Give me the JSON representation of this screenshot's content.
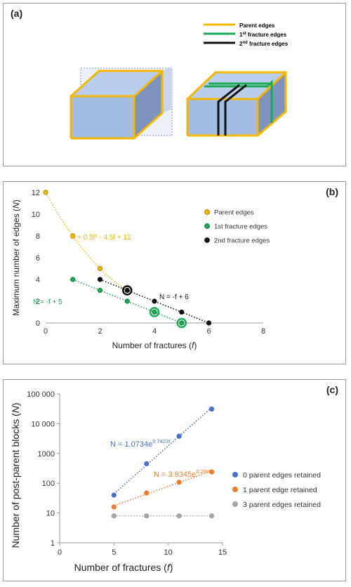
{
  "panel_a": {
    "label": "(a)",
    "legend": [
      {
        "name": "Parent edges",
        "color": "#f5b800"
      },
      {
        "name": "1",
        "sup": "st",
        "tail": " fracture edges",
        "color": "#1aaa55"
      },
      {
        "name": "2",
        "sup": "nd",
        "tail": " fracture edges",
        "color": "#111111"
      }
    ],
    "colors": {
      "face_front": "#a3bde3",
      "face_top": "#b9cdec",
      "face_side": "#7f93bf",
      "parent": "#f5b800",
      "first": "#1aaa55",
      "second": "#111111"
    }
  },
  "chart_data": [
    {
      "type": "scatter",
      "label": "(b)",
      "xlabel": "Number of fractures (",
      "xlabel_var": "f",
      "xlabel_end": ")",
      "ylabel": "Maximum number of edges (",
      "ylabel_var": "N",
      "ylabel_end": ")",
      "xlim": [
        0,
        8
      ],
      "ylim": [
        0,
        12
      ],
      "xticks": [
        0,
        2,
        4,
        6,
        8
      ],
      "yticks": [
        0,
        2,
        4,
        6,
        8,
        10,
        12
      ],
      "legend_position": "right",
      "series": [
        {
          "name": "Parent edges",
          "color": "#f5b800",
          "edge": "#9a7a00",
          "x": [
            0,
            1,
            2,
            3
          ],
          "y": [
            12,
            8,
            5,
            3
          ],
          "fit": {
            "kind": "poly2",
            "a": 0.5,
            "b": -4.5,
            "c": 12,
            "from": 0,
            "to": 3
          }
        },
        {
          "name": "1st fracture edges",
          "color": "#1aaa55",
          "edge": "#0e6e35",
          "x": [
            1,
            2,
            3,
            4,
            5
          ],
          "y": [
            4,
            3,
            2,
            1,
            0
          ],
          "fit": {
            "kind": "linear",
            "m": -1,
            "c": 5,
            "from": 1,
            "to": 5
          }
        },
        {
          "name": "2nd fracture edges",
          "color": "#111111",
          "edge": "#111111",
          "x": [
            2,
            3,
            4,
            5,
            6
          ],
          "y": [
            4,
            3,
            2,
            1,
            0
          ],
          "fit": {
            "kind": "linear",
            "m": -1,
            "c": 6,
            "from": 2,
            "to": 6
          }
        }
      ],
      "highlight_rings": [
        {
          "x": 3,
          "y": 3,
          "color": "#111111"
        },
        {
          "x": 4,
          "y": 1,
          "color": "#1aaa55"
        },
        {
          "x": 5,
          "y": 0,
          "color": "#1aaa55"
        }
      ],
      "annotations": [
        {
          "text": "N = 0.5f² - 4.5f + 12",
          "color": "#f5b800"
        },
        {
          "text": "N = -f + 5",
          "color": "#1aaa55"
        },
        {
          "text": "N = -f + 6",
          "color": "#111111"
        }
      ]
    },
    {
      "type": "scatter",
      "label": "(c)",
      "xlabel": "Number of fractures (",
      "xlabel_var": "f",
      "xlabel_end": ")",
      "ylabel": "Number of post-parent blocks (",
      "ylabel_var": "N",
      "ylabel_end": ")",
      "xlim": [
        0,
        15
      ],
      "ylim": [
        1,
        100000
      ],
      "ylog": true,
      "xticks": [
        0,
        5,
        10,
        15
      ],
      "yticks": [
        1,
        10,
        100,
        1000,
        10000,
        100000
      ],
      "ytick_labels": [
        "1",
        "10",
        "100",
        "1000",
        "10 000",
        "100 000"
      ],
      "legend_position": "right",
      "series": [
        {
          "name": "0 parent edges retained",
          "color": "#4472c4",
          "x": [
            5,
            8,
            11,
            14
          ],
          "y": [
            40,
            450,
            3800,
            31000
          ],
          "fit": {
            "kind": "exp",
            "a": 1.0734,
            "b": 0.7423,
            "from": 5,
            "to": 14
          }
        },
        {
          "name": "1 parent edge retained",
          "color": "#ed7d31",
          "x": [
            5,
            8,
            11,
            14
          ],
          "y": [
            16,
            47,
            108,
            240
          ],
          "fit": {
            "kind": "exp",
            "a": 3.9345,
            "b": 0.299,
            "from": 5,
            "to": 14
          }
        },
        {
          "name": "3 parent edges retained",
          "color": "#a5a5a5",
          "x": [
            5,
            8,
            11,
            14
          ],
          "y": [
            8,
            8,
            8,
            8
          ],
          "fit": {
            "kind": "const",
            "c": 8,
            "from": 5,
            "to": 14
          }
        }
      ],
      "annotations": [
        {
          "text": "N = 1.0734e",
          "sup": "0.7423f",
          "color": "#4472c4"
        },
        {
          "text": "N = 3.9345e",
          "sup": "0.299f",
          "color": "#ed7d31"
        }
      ]
    }
  ]
}
